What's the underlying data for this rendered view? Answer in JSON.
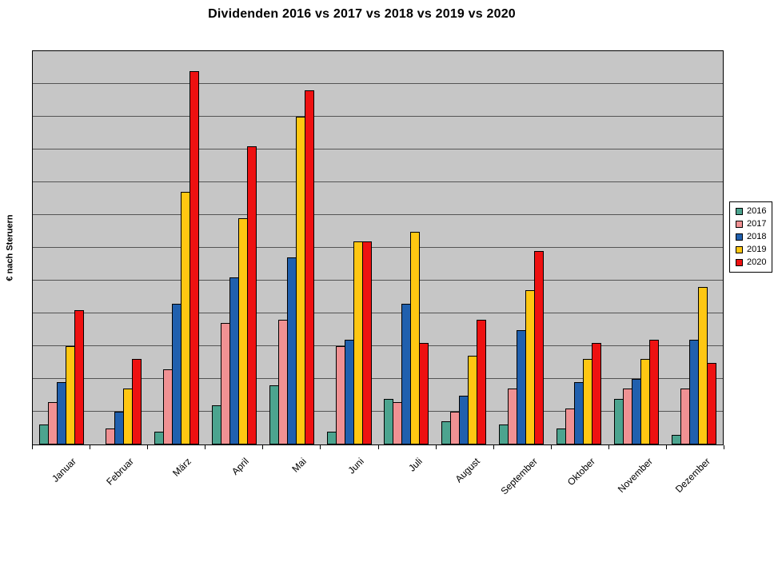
{
  "chart_data": {
    "type": "bar",
    "title": "Dividenden 2016 vs 2017 vs 2018 vs 2019 vs 2020",
    "xlabel": "",
    "ylabel": "€ nach Steruern",
    "categories": [
      "Januar",
      "Februar",
      "März",
      "April",
      "Mai",
      "Juni",
      "Juli",
      "August",
      "September",
      "Oktober",
      "November",
      "Dezember"
    ],
    "series": [
      {
        "name": "2016",
        "color": "#4CA48F",
        "values": [
          6,
          0,
          4,
          12,
          18,
          4,
          14,
          7,
          6,
          5,
          14,
          3
        ]
      },
      {
        "name": "2017",
        "color": "#F09193",
        "values": [
          13,
          5,
          23,
          37,
          38,
          30,
          13,
          10,
          17,
          11,
          17,
          17
        ]
      },
      {
        "name": "2018",
        "color": "#2060AE",
        "values": [
          19,
          10,
          43,
          51,
          57,
          32,
          43,
          15,
          35,
          19,
          20,
          32
        ]
      },
      {
        "name": "2019",
        "color": "#FFC712",
        "values": [
          30,
          17,
          77,
          69,
          100,
          62,
          65,
          27,
          47,
          26,
          26,
          48
        ]
      },
      {
        "name": "2020",
        "color": "#EE1111",
        "values": [
          41,
          26,
          114,
          91,
          108,
          62,
          31,
          38,
          59,
          31,
          32,
          25
        ]
      }
    ],
    "ylim": [
      0,
      120
    ],
    "grid_interval": 10,
    "y_tick_labels_visible": false,
    "grid": true,
    "legend_position": "right",
    "plot_bg": "#C6C6C6",
    "gridline_color": "#545454"
  }
}
